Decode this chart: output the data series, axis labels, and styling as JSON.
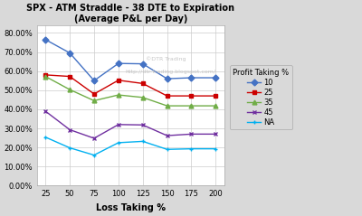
{
  "title_line1": "SPX - ATM Straddle - 38 DTE to Expiration",
  "title_line2": "(Average P&L per Day)",
  "xlabel": "Loss Taking %",
  "x": [
    25,
    50,
    75,
    100,
    125,
    150,
    175,
    200
  ],
  "series": {
    "10": [
      0.765,
      0.695,
      0.55,
      0.64,
      0.638,
      0.56,
      0.565,
      0.565
    ],
    "25": [
      0.58,
      0.572,
      0.48,
      0.552,
      0.535,
      0.47,
      0.47,
      0.47
    ],
    "35": [
      0.572,
      0.503,
      0.445,
      0.475,
      0.462,
      0.418,
      0.418,
      0.418
    ],
    "45": [
      0.39,
      0.293,
      0.248,
      0.32,
      0.318,
      0.262,
      0.27,
      0.27
    ],
    "NA": [
      0.254,
      0.198,
      0.16,
      0.225,
      0.232,
      0.19,
      0.193,
      0.193
    ]
  },
  "colors": {
    "10": "#4472C4",
    "25": "#CC0000",
    "35": "#70AD47",
    "45": "#7030A0",
    "NA": "#00B0F0"
  },
  "markers": {
    "10": "D",
    "25": "s",
    "35": "^",
    "45": "x",
    "NA": "+"
  },
  "legend_title": "Profit Taking %",
  "watermark1": "©DTR Trading",
  "watermark2": "http://dtr-trading.blogspot.com/",
  "ylim": [
    0.0,
    0.84
  ],
  "yticks": [
    0.0,
    0.1,
    0.2,
    0.3,
    0.4,
    0.5,
    0.6,
    0.7,
    0.8
  ],
  "bg_color": "#D9D9D9",
  "plot_bg_color": "#FFFFFF"
}
